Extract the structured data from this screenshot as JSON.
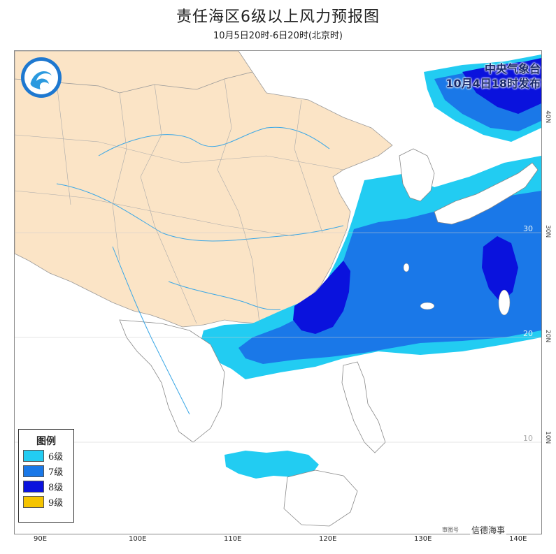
{
  "header": {
    "title": "责任海区6级以上风力预报图",
    "subtitle": "10月5日20时-6日20时(北京时)"
  },
  "issuer": {
    "line1": "中央气象台",
    "line2": "10月4日18时发布"
  },
  "legend": {
    "title": "图例",
    "items": [
      {
        "label": "6级",
        "color": "#22ccf2"
      },
      {
        "label": "7级",
        "color": "#1a78e8"
      },
      {
        "label": "8级",
        "color": "#0a12dd"
      },
      {
        "label": "9级",
        "color": "#f5c400"
      }
    ]
  },
  "axes": {
    "lon_labels": [
      "90E",
      "100E",
      "110E",
      "120E",
      "130E",
      "140E"
    ],
    "lat_labels": [
      "40N",
      "30N",
      "20N",
      "10N"
    ],
    "inner_lat": [
      "30",
      "20",
      "10"
    ]
  },
  "colors": {
    "land_china": "#fbe4c6",
    "land_other": "#ffffff",
    "sea": "#ffffff",
    "river": "#3aa7e6",
    "border": "#888888"
  },
  "credit": {
    "text": "信德海事",
    "small": "审图号"
  }
}
